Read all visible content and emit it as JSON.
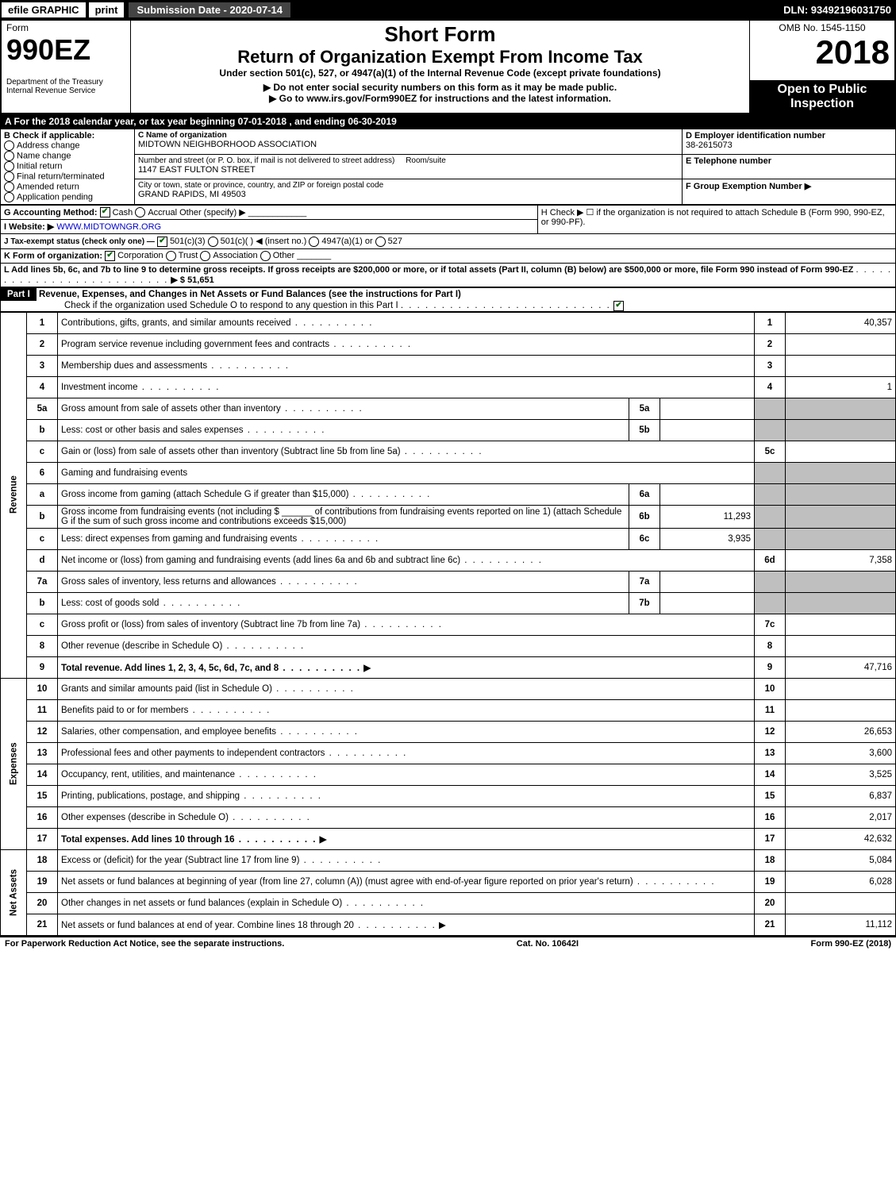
{
  "topBar": {
    "efile": "efile GRAPHIC",
    "print": "print",
    "subDate": "Submission Date - 2020-07-14",
    "dln": "DLN: 93492196031750"
  },
  "header": {
    "formWord": "Form",
    "formNo": "990EZ",
    "shortForm": "Short Form",
    "returnTitle": "Return of Organization Exempt From Income Tax",
    "underSection": "Under section 501(c), 527, or 4947(a)(1) of the Internal Revenue Code (except private foundations)",
    "noSSN": "▶ Do not enter social security numbers on this form as it may be made public.",
    "goTo": "▶ Go to www.irs.gov/Form990EZ for instructions and the latest information.",
    "dept": "Department of the Treasury Internal Revenue Service",
    "omb": "OMB No. 1545-1150",
    "year": "2018",
    "openTo": "Open to Public Inspection"
  },
  "calBar": {
    "prefix": "A For the 2018 calendar year, or tax year beginning ",
    "begin": "07-01-2018",
    "mid": " , and ending ",
    "end": "06-30-2019"
  },
  "boxB": {
    "title": "B Check if applicable:",
    "opts": [
      "Address change",
      "Name change",
      "Initial return",
      "Final return/terminated",
      "Amended return",
      "Application pending"
    ]
  },
  "boxC": {
    "nameLbl": "C Name of organization",
    "name": "MIDTOWN NEIGHBORHOOD ASSOCIATION",
    "addrLbl": "Number and street (or P. O. box, if mail is not delivered to street address)",
    "addr": "1147 EAST FULTON STREET",
    "roomLbl": "Room/suite",
    "cityLbl": "City or town, state or province, country, and ZIP or foreign postal code",
    "city": "GRAND RAPIDS, MI  49503"
  },
  "boxD": {
    "lbl": "D Employer identification number",
    "val": "38-2615073"
  },
  "boxE": {
    "lbl": "E Telephone number",
    "val": ""
  },
  "boxF": {
    "lbl": "F Group Exemption Number ▶",
    "val": ""
  },
  "lineG": {
    "lbl": "G Accounting Method:",
    "opts": [
      "Cash",
      "Accrual",
      "Other (specify) ▶"
    ],
    "checked": 0
  },
  "lineH": {
    "text": "H  Check ▶  ☐  if the organization is not required to attach Schedule B (Form 990, 990-EZ, or 990-PF)."
  },
  "lineI": {
    "lbl": "I Website: ▶",
    "val": "WWW.MIDTOWNGR.ORG"
  },
  "lineJ": {
    "lbl": "J Tax-exempt status (check only one) —",
    "opts": [
      "501(c)(3)",
      "501(c)(  ) ◀ (insert no.)",
      "4947(a)(1) or",
      "527"
    ],
    "checked": 0
  },
  "lineK": {
    "lbl": "K Form of organization:",
    "opts": [
      "Corporation",
      "Trust",
      "Association",
      "Other"
    ],
    "checked": 0
  },
  "lineL": {
    "text": "L Add lines 5b, 6c, and 7b to line 9 to determine gross receipts. If gross receipts are $200,000 or more, or if total assets (Part II, column (B) below) are $500,000 or more, file Form 990 instead of Form 990-EZ",
    "val": "▶ $ 51,651"
  },
  "partI": {
    "bar": "Part I",
    "title": "Revenue, Expenses, and Changes in Net Assets or Fund Balances (see the instructions for Part I)",
    "checkLine": "Check if the organization used Schedule O to respond to any question in this Part I",
    "checked": true
  },
  "sections": {
    "revenue": "Revenue",
    "expenses": "Expenses",
    "netAssets": "Net Assets"
  },
  "rows": [
    {
      "n": "1",
      "d": "Contributions, gifts, grants, and similar amounts received",
      "c": "1",
      "v": "40,357"
    },
    {
      "n": "2",
      "d": "Program service revenue including government fees and contracts",
      "c": "2",
      "v": ""
    },
    {
      "n": "3",
      "d": "Membership dues and assessments",
      "c": "3",
      "v": ""
    },
    {
      "n": "4",
      "d": "Investment income",
      "c": "4",
      "v": "1"
    },
    {
      "n": "5a",
      "d": "Gross amount from sale of assets other than inventory",
      "sub": "5a",
      "sv": "",
      "grey": true
    },
    {
      "n": "b",
      "d": "Less: cost or other basis and sales expenses",
      "sub": "5b",
      "sv": "",
      "grey": true
    },
    {
      "n": "c",
      "d": "Gain or (loss) from sale of assets other than inventory (Subtract line 5b from line 5a)",
      "c": "5c",
      "v": ""
    },
    {
      "n": "6",
      "d": "Gaming and fundraising events",
      "grey": true,
      "noDots": true
    },
    {
      "n": "a",
      "d": "Gross income from gaming (attach Schedule G if greater than $15,000)",
      "sub": "6a",
      "sv": "",
      "grey": true
    },
    {
      "n": "b",
      "d": "Gross income from fundraising events (not including $ ______ of contributions from fundraising events reported on line 1) (attach Schedule G if the sum of such gross income and contributions exceeds $15,000)",
      "sub": "6b",
      "sv": "11,293",
      "grey": true,
      "noDots": true
    },
    {
      "n": "c",
      "d": "Less: direct expenses from gaming and fundraising events",
      "sub": "6c",
      "sv": "3,935",
      "grey": true
    },
    {
      "n": "d",
      "d": "Net income or (loss) from gaming and fundraising events (add lines 6a and 6b and subtract line 6c)",
      "c": "6d",
      "v": "7,358"
    },
    {
      "n": "7a",
      "d": "Gross sales of inventory, less returns and allowances",
      "sub": "7a",
      "sv": "",
      "grey": true
    },
    {
      "n": "b",
      "d": "Less: cost of goods sold",
      "sub": "7b",
      "sv": "",
      "grey": true
    },
    {
      "n": "c",
      "d": "Gross profit or (loss) from sales of inventory (Subtract line 7b from line 7a)",
      "c": "7c",
      "v": ""
    },
    {
      "n": "8",
      "d": "Other revenue (describe in Schedule O)",
      "c": "8",
      "v": ""
    },
    {
      "n": "9",
      "d": "Total revenue. Add lines 1, 2, 3, 4, 5c, 6d, 7c, and 8",
      "c": "9",
      "v": "47,716",
      "bold": true,
      "arrow": true
    }
  ],
  "expRows": [
    {
      "n": "10",
      "d": "Grants and similar amounts paid (list in Schedule O)",
      "c": "10",
      "v": ""
    },
    {
      "n": "11",
      "d": "Benefits paid to or for members",
      "c": "11",
      "v": ""
    },
    {
      "n": "12",
      "d": "Salaries, other compensation, and employee benefits",
      "c": "12",
      "v": "26,653"
    },
    {
      "n": "13",
      "d": "Professional fees and other payments to independent contractors",
      "c": "13",
      "v": "3,600"
    },
    {
      "n": "14",
      "d": "Occupancy, rent, utilities, and maintenance",
      "c": "14",
      "v": "3,525"
    },
    {
      "n": "15",
      "d": "Printing, publications, postage, and shipping",
      "c": "15",
      "v": "6,837"
    },
    {
      "n": "16",
      "d": "Other expenses (describe in Schedule O)",
      "c": "16",
      "v": "2,017"
    },
    {
      "n": "17",
      "d": "Total expenses. Add lines 10 through 16",
      "c": "17",
      "v": "42,632",
      "bold": true,
      "arrow": true
    }
  ],
  "naRows": [
    {
      "n": "18",
      "d": "Excess or (deficit) for the year (Subtract line 17 from line 9)",
      "c": "18",
      "v": "5,084"
    },
    {
      "n": "19",
      "d": "Net assets or fund balances at beginning of year (from line 27, column (A)) (must agree with end-of-year figure reported on prior year's return)",
      "c": "19",
      "v": "6,028"
    },
    {
      "n": "20",
      "d": "Other changes in net assets or fund balances (explain in Schedule O)",
      "c": "20",
      "v": ""
    },
    {
      "n": "21",
      "d": "Net assets or fund balances at end of year. Combine lines 18 through 20",
      "c": "21",
      "v": "11,112",
      "arrow": true
    }
  ],
  "footer": {
    "left": "For Paperwork Reduction Act Notice, see the separate instructions.",
    "mid": "Cat. No. 10642I",
    "right": "Form 990-EZ (2018)"
  }
}
